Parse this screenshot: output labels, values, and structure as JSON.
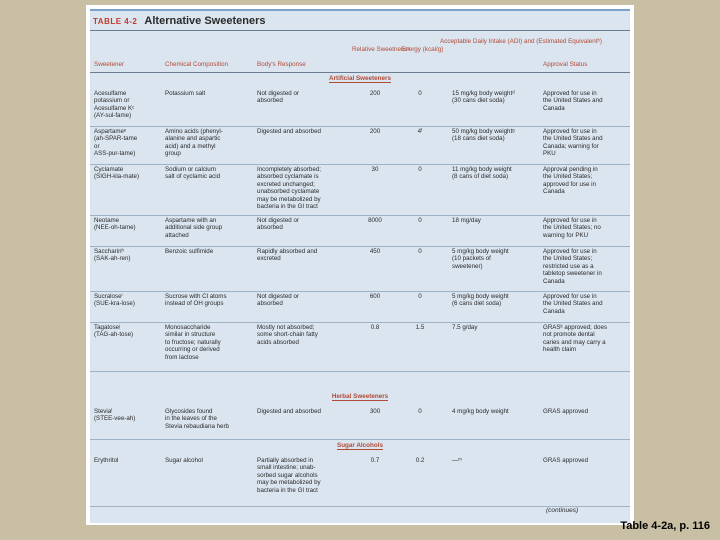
{
  "table": {
    "label": "TABLE 4-2",
    "name": "Alternative Sweeteners",
    "headers": {
      "sweetener": "Sweetener",
      "composition": "Chemical Composition",
      "response": "Body's Response",
      "sweetness": "Relative\nSweetnessᵃ",
      "energy": "Energy\n(kcal/g)",
      "adi": "Acceptable Daily Intake\n(ADI) and (Estimated\nEquivalentᵇ)",
      "status": "Approval Status"
    },
    "sections": [
      {
        "title": "Artificial Sweeteners",
        "rows": [
          {
            "name": "Acesulfame\npotassium or\nAcesulfame Kᶜ\n(AY-sul-fame)",
            "comp": "Potassium salt",
            "resp": "Not digested or\nabsorbed",
            "sweet": "200",
            "energy": "0",
            "adi": "15 mg/kg body weightᵈ\n(30 cans diet soda)",
            "status": "Approved for use in\nthe United States and\nCanada"
          },
          {
            "name": "Aspartameᵉ\n(ah-SPAR-tame\nor\nASS-pur-tame)",
            "comp": "Amino acids (phenyl-\nalanine and aspartic\nacid) and a methyl\ngroup",
            "resp": "Digested and absorbed",
            "sweet": "200",
            "energy": "4ᶠ",
            "adi": "50 mg/kg body weightᵍ\n(18 cans diet soda)",
            "status": "Approved for use in\nthe United States and\nCanada; warning for\nPKU"
          },
          {
            "name": "Cyclamate\n(SIGH-kla-mate)",
            "comp": "Sodium or calcium\nsalt of cyclamic acid",
            "resp": "Incompletely absorbed;\nabsorbed cyclamate is\nexcreted unchanged;\nunabsorbed cyclamate\nmay be metabolized by\nbacteria in the GI tract",
            "sweet": "30",
            "energy": "0",
            "adi": "11 mg/kg body weight\n(8 cans of diet soda)",
            "status": "Approval pending in\nthe United States;\napproved for use in\nCanada"
          },
          {
            "name": "Neotame\n(NEE-oh-tame)",
            "comp": "Aspartame with an\nadditional side group\nattached",
            "resp": "Not digested or\nabsorbed",
            "sweet": "8000",
            "energy": "0",
            "adi": "18 mg/day",
            "status": "Approved for use in\nthe United States; no\nwarning for PKU"
          },
          {
            "name": "Saccharinʰ\n(SAK-ah-ren)",
            "comp": "Benzoic sulfimide",
            "resp": "Rapidly absorbed and\nexcreted",
            "sweet": "450",
            "energy": "0",
            "adi": "5 mg/kg body weight\n(10 packets of\nsweetener)",
            "status": "Approved for use in\nthe United States;\nrestricted use as a\ntabletop sweetener in\nCanada"
          },
          {
            "name": "Sucraloseⁱ\n(SUE-kra-lose)",
            "comp": "Sucrose with Cl atoms\ninstead of OH groups",
            "resp": "Not digested or\nabsorbed",
            "sweet": "600",
            "energy": "0",
            "adi": "5 mg/kg body weight\n(6 cans diet soda)",
            "status": "Approved for use in\nthe United States and\nCanada"
          },
          {
            "name": "Tagatoseʲ\n(TAG-ah-tose)",
            "comp": "Monosaccharide\nsimilar in structure\nto fructose; naturally\noccurring or derived\nfrom lactose",
            "resp": "Mostly not absorbed;\nsome short-chain fatty\nacids absorbed",
            "sweet": "0.8",
            "energy": "1.5",
            "adi": "7.5 g/day",
            "status": "GRASᵏ approved; does\nnot promote dental\ncaries and may carry a\nhealth claim"
          }
        ]
      },
      {
        "title": "Herbal Sweeteners",
        "rows": [
          {
            "name": "Steviaˡ\n(STEE-vee-ah)",
            "comp": "Glycosides found\nin the leaves of the\nStevia rebaudiana herb",
            "resp": "Digested and absorbed",
            "sweet": "300",
            "energy": "0",
            "adi": "4 mg/kg body weight",
            "status": "GRAS approved"
          }
        ]
      },
      {
        "title": "Sugar Alcohols",
        "rows": [
          {
            "name": "Erythritol",
            "comp": "Sugar alcohol",
            "resp": "Partially absorbed in\nsmall intestine; unab-\nsorbed sugar alcohols\nmay be metabolized by\nbacteria in the GI tract",
            "sweet": "0.7",
            "energy": "0.2",
            "adi": "—ᵐ",
            "status": "GRAS approved"
          }
        ]
      }
    ],
    "continued": "(continues)"
  },
  "caption": "Table 4-2a, p. 116"
}
